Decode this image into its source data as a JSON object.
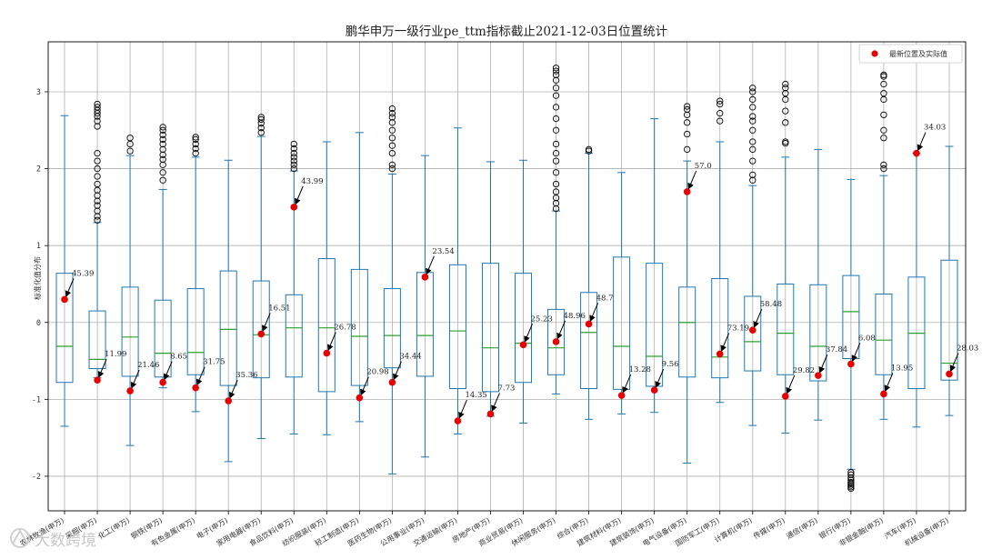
{
  "chart_data": {
    "type": "box",
    "title": "鹏华申万一级行业pe_ttm指标截止2021-12-03日位置统计",
    "ylabel": "标准化值分布",
    "xlabel": "",
    "ylim": [
      -2.45,
      3.65
    ],
    "yticks": [
      -2,
      -1,
      0,
      1,
      2,
      3
    ],
    "grid": true,
    "legend": {
      "label": "最新位置及实际值",
      "placement": "top-right"
    },
    "categories": [
      {
        "name": "农林牧渔(申万)",
        "whislo": -1.35,
        "q1": -0.78,
        "med": -0.31,
        "q3": 0.64,
        "whishi": 2.69,
        "fliers": [],
        "latest_z": 0.3,
        "actual": "45.39"
      },
      {
        "name": "采掘(申万)",
        "whislo": -0.72,
        "q1": -0.6,
        "med": -0.48,
        "q3": 0.15,
        "whishi": 1.3,
        "fliers": [
          1.33,
          1.38,
          1.45,
          1.52,
          1.58,
          1.65,
          1.72,
          1.8,
          1.9,
          2.0,
          2.1,
          2.2,
          2.55,
          2.62,
          2.68,
          2.72,
          2.76,
          2.8,
          2.84
        ],
        "latest_z": -0.75,
        "actual": "11.99"
      },
      {
        "name": "化工(申万)",
        "whislo": -1.6,
        "q1": -0.7,
        "med": -0.19,
        "q3": 0.46,
        "whishi": 2.17,
        "fliers": [
          2.23,
          2.32,
          2.4
        ],
        "latest_z": -0.89,
        "actual": "21.46"
      },
      {
        "name": "钢铁(申万)",
        "whislo": -0.85,
        "q1": -0.71,
        "med": -0.4,
        "q3": 0.29,
        "whishi": 1.73,
        "fliers": [
          1.85,
          1.95,
          2.05,
          2.12,
          2.18,
          2.25,
          2.32,
          2.38,
          2.44,
          2.5,
          2.54
        ],
        "latest_z": -0.78,
        "actual": "8.65"
      },
      {
        "name": "有色金属(申万)",
        "whislo": -1.16,
        "q1": -0.68,
        "med": -0.39,
        "q3": 0.44,
        "whishi": 2.15,
        "fliers": [
          2.2,
          2.26,
          2.32,
          2.38,
          2.41
        ],
        "latest_z": -0.85,
        "actual": "31.75"
      },
      {
        "name": "电子(申万)",
        "whislo": -1.81,
        "q1": -0.82,
        "med": -0.09,
        "q3": 0.67,
        "whishi": 2.11,
        "fliers": [],
        "latest_z": -1.02,
        "actual": "35.36"
      },
      {
        "name": "家用电器(申万)",
        "whislo": -1.51,
        "q1": -0.72,
        "med": -0.16,
        "q3": 0.54,
        "whishi": 2.42,
        "fliers": [
          2.47,
          2.53,
          2.59,
          2.64,
          2.67
        ],
        "latest_z": -0.15,
        "actual": "16.51"
      },
      {
        "name": "食品饮料(申万)",
        "whislo": -1.45,
        "q1": -0.71,
        "med": -0.07,
        "q3": 0.36,
        "whishi": 1.97,
        "fliers": [
          2.0,
          2.05,
          2.1,
          2.15,
          2.2,
          2.26,
          2.32
        ],
        "latest_z": 1.5,
        "actual": "43.99"
      },
      {
        "name": "纺织服装(申万)",
        "whislo": -1.46,
        "q1": -0.9,
        "med": -0.07,
        "q3": 0.83,
        "whishi": 2.35,
        "fliers": [],
        "latest_z": -0.4,
        "actual": "26.78"
      },
      {
        "name": "轻工制造(申万)",
        "whislo": -1.29,
        "q1": -0.82,
        "med": -0.18,
        "q3": 0.69,
        "whishi": 2.47,
        "fliers": [],
        "latest_z": -0.98,
        "actual": "20.98"
      },
      {
        "name": "医药生物(申万)",
        "whislo": -1.97,
        "q1": -0.59,
        "med": -0.17,
        "q3": 0.44,
        "whishi": 1.93,
        "fliers": [
          2.0,
          2.05,
          2.2,
          2.3,
          2.4,
          2.5,
          2.6,
          2.67,
          2.72,
          2.78
        ],
        "latest_z": -0.78,
        "actual": "34.44"
      },
      {
        "name": "公用事业(申万)",
        "whislo": -1.75,
        "q1": -0.7,
        "med": -0.17,
        "q3": 0.65,
        "whishi": 2.17,
        "fliers": [],
        "latest_z": 0.59,
        "actual": "23.54"
      },
      {
        "name": "交通运输(申万)",
        "whislo": -1.45,
        "q1": -0.86,
        "med": -0.11,
        "q3": 0.75,
        "whishi": 2.53,
        "fliers": [],
        "latest_z": -1.28,
        "actual": "14.35"
      },
      {
        "name": "房地产(申万)",
        "whislo": -1.22,
        "q1": -0.9,
        "med": -0.33,
        "q3": 0.77,
        "whishi": 2.09,
        "fliers": [],
        "latest_z": -1.19,
        "actual": "7.73"
      },
      {
        "name": "商业贸易(申万)",
        "whislo": -1.31,
        "q1": -0.78,
        "med": -0.27,
        "q3": 0.64,
        "whishi": 2.11,
        "fliers": [],
        "latest_z": -0.29,
        "actual": "25.23"
      },
      {
        "name": "休闲服务(申万)",
        "whislo": -0.93,
        "q1": -0.68,
        "med": -0.33,
        "q3": 0.17,
        "whishi": 1.45,
        "fliers": [
          1.48,
          1.55,
          1.62,
          1.7,
          1.8,
          1.95,
          2.1,
          2.2,
          2.32,
          2.5,
          2.65,
          2.8,
          2.95,
          3.05,
          3.15,
          3.22,
          3.27,
          3.31
        ],
        "latest_z": -0.25,
        "actual": "48.96"
      },
      {
        "name": "综合(申万)",
        "whislo": -1.26,
        "q1": -0.86,
        "med": -0.13,
        "q3": 0.39,
        "whishi": 2.2,
        "fliers": [
          2.23,
          2.25
        ],
        "latest_z": -0.02,
        "actual": "48.7"
      },
      {
        "name": "建筑材料(申万)",
        "whislo": -1.19,
        "q1": -0.87,
        "med": -0.31,
        "q3": 0.85,
        "whishi": 1.95,
        "fliers": [],
        "latest_z": -0.95,
        "actual": "13.28"
      },
      {
        "name": "建筑装饰(申万)",
        "whislo": -1.17,
        "q1": -0.83,
        "med": -0.44,
        "q3": 0.77,
        "whishi": 2.65,
        "fliers": [],
        "latest_z": -0.88,
        "actual": "9.56"
      },
      {
        "name": "电气设备(申万)",
        "whislo": -1.83,
        "q1": -0.71,
        "med": 0.0,
        "q3": 0.46,
        "whishi": 2.1,
        "fliers": [
          2.25,
          2.45,
          2.6,
          2.7,
          2.77,
          2.81
        ],
        "latest_z": 1.7,
        "actual": "57.0"
      },
      {
        "name": "国防军工(申万)",
        "whislo": -1.04,
        "q1": -0.72,
        "med": -0.45,
        "q3": 0.57,
        "whishi": 2.35,
        "fliers": [
          2.62,
          2.72,
          2.84,
          2.88
        ],
        "latest_z": -0.41,
        "actual": "73.19"
      },
      {
        "name": "计算机(申万)",
        "whislo": -1.34,
        "q1": -0.63,
        "med": -0.25,
        "q3": 0.34,
        "whishi": 1.78,
        "fliers": [
          1.85,
          1.92,
          2.1,
          2.25,
          2.35,
          2.5,
          2.62,
          2.68,
          2.8,
          2.9,
          3.0,
          3.05
        ],
        "latest_z": -0.1,
        "actual": "58.48"
      },
      {
        "name": "传媒(申万)",
        "whislo": -1.44,
        "q1": -0.68,
        "med": -0.14,
        "q3": 0.5,
        "whishi": 2.15,
        "fliers": [
          2.33,
          2.35,
          2.6,
          2.75,
          2.9,
          2.98,
          3.05,
          3.1
        ],
        "latest_z": -0.96,
        "actual": "29.82"
      },
      {
        "name": "通信(申万)",
        "whislo": -1.27,
        "q1": -0.76,
        "med": -0.31,
        "q3": 0.49,
        "whishi": 2.25,
        "fliers": [],
        "latest_z": -0.69,
        "actual": "37.84"
      },
      {
        "name": "银行(申万)",
        "whislo": -1.91,
        "q1": -0.47,
        "med": 0.14,
        "q3": 0.61,
        "whishi": 1.86,
        "fliers": [
          -1.95,
          -1.98,
          -2.02,
          -2.05,
          -2.08,
          -2.1,
          -2.12,
          -2.14,
          -2.16
        ],
        "latest_z": -0.54,
        "actual": "6.08"
      },
      {
        "name": "非银金融(申万)",
        "whislo": -1.26,
        "q1": -0.68,
        "med": -0.23,
        "q3": 0.37,
        "whishi": 1.91,
        "fliers": [
          2.0,
          2.05,
          2.4,
          2.5,
          2.7,
          2.9,
          2.98,
          3.1,
          3.2,
          3.22
        ],
        "latest_z": -0.93,
        "actual": "13.95"
      },
      {
        "name": "汽车(申万)",
        "whislo": -1.36,
        "q1": -0.86,
        "med": -0.14,
        "q3": 0.59,
        "whishi": 2.2,
        "fliers": [],
        "latest_z": 2.2,
        "actual": "34.03"
      },
      {
        "name": "机械设备(申万)",
        "whislo": -1.21,
        "q1": -0.75,
        "med": -0.53,
        "q3": 0.81,
        "whishi": 2.29,
        "fliers": [],
        "latest_z": -0.67,
        "actual": "28.03"
      }
    ],
    "colors": {
      "box": "#1f77b4",
      "median": "#2ca02c",
      "marker": "#e60000",
      "grid": "#b0b0b0",
      "flier": "#000000"
    }
  },
  "watermark": {
    "text": "大数跨境",
    "icon": "watermark-logo-icon"
  }
}
